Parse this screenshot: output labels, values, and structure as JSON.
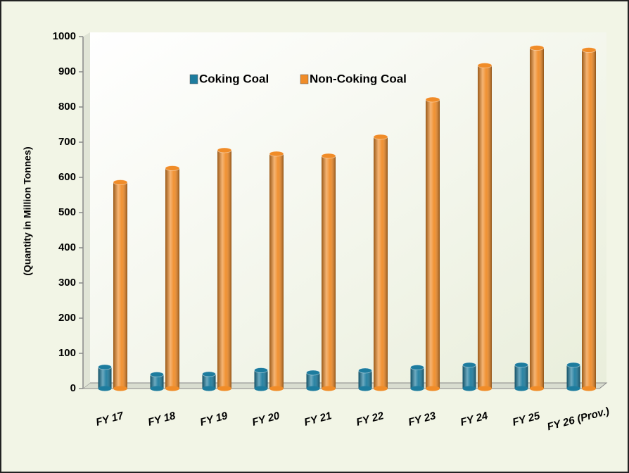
{
  "chart_data": {
    "type": "bar",
    "y_label": "(Quantity in Million Tonnes)",
    "categories": [
      "FY 17",
      "FY 18",
      "FY 19",
      "FY 20",
      "FY 21",
      "FY 22",
      "FY 23",
      "FY 24",
      "FY 25",
      "FY 26 (Prov.)"
    ],
    "series": [
      {
        "name": "Coking Coal",
        "color": "#1d7c9e",
        "values": [
          61,
          40,
          41,
          52,
          45,
          51,
          60,
          67,
          67,
          67
        ]
      },
      {
        "name": "Non-Coking Coal",
        "color": "#f08c28",
        "values": [
          586,
          626,
          677,
          667,
          661,
          715,
          821,
          918,
          968,
          962
        ]
      }
    ],
    "ylim": [
      0,
      1000
    ],
    "yticks": [
      0,
      100,
      200,
      300,
      400,
      500,
      600,
      700,
      800,
      900,
      1000
    ]
  }
}
